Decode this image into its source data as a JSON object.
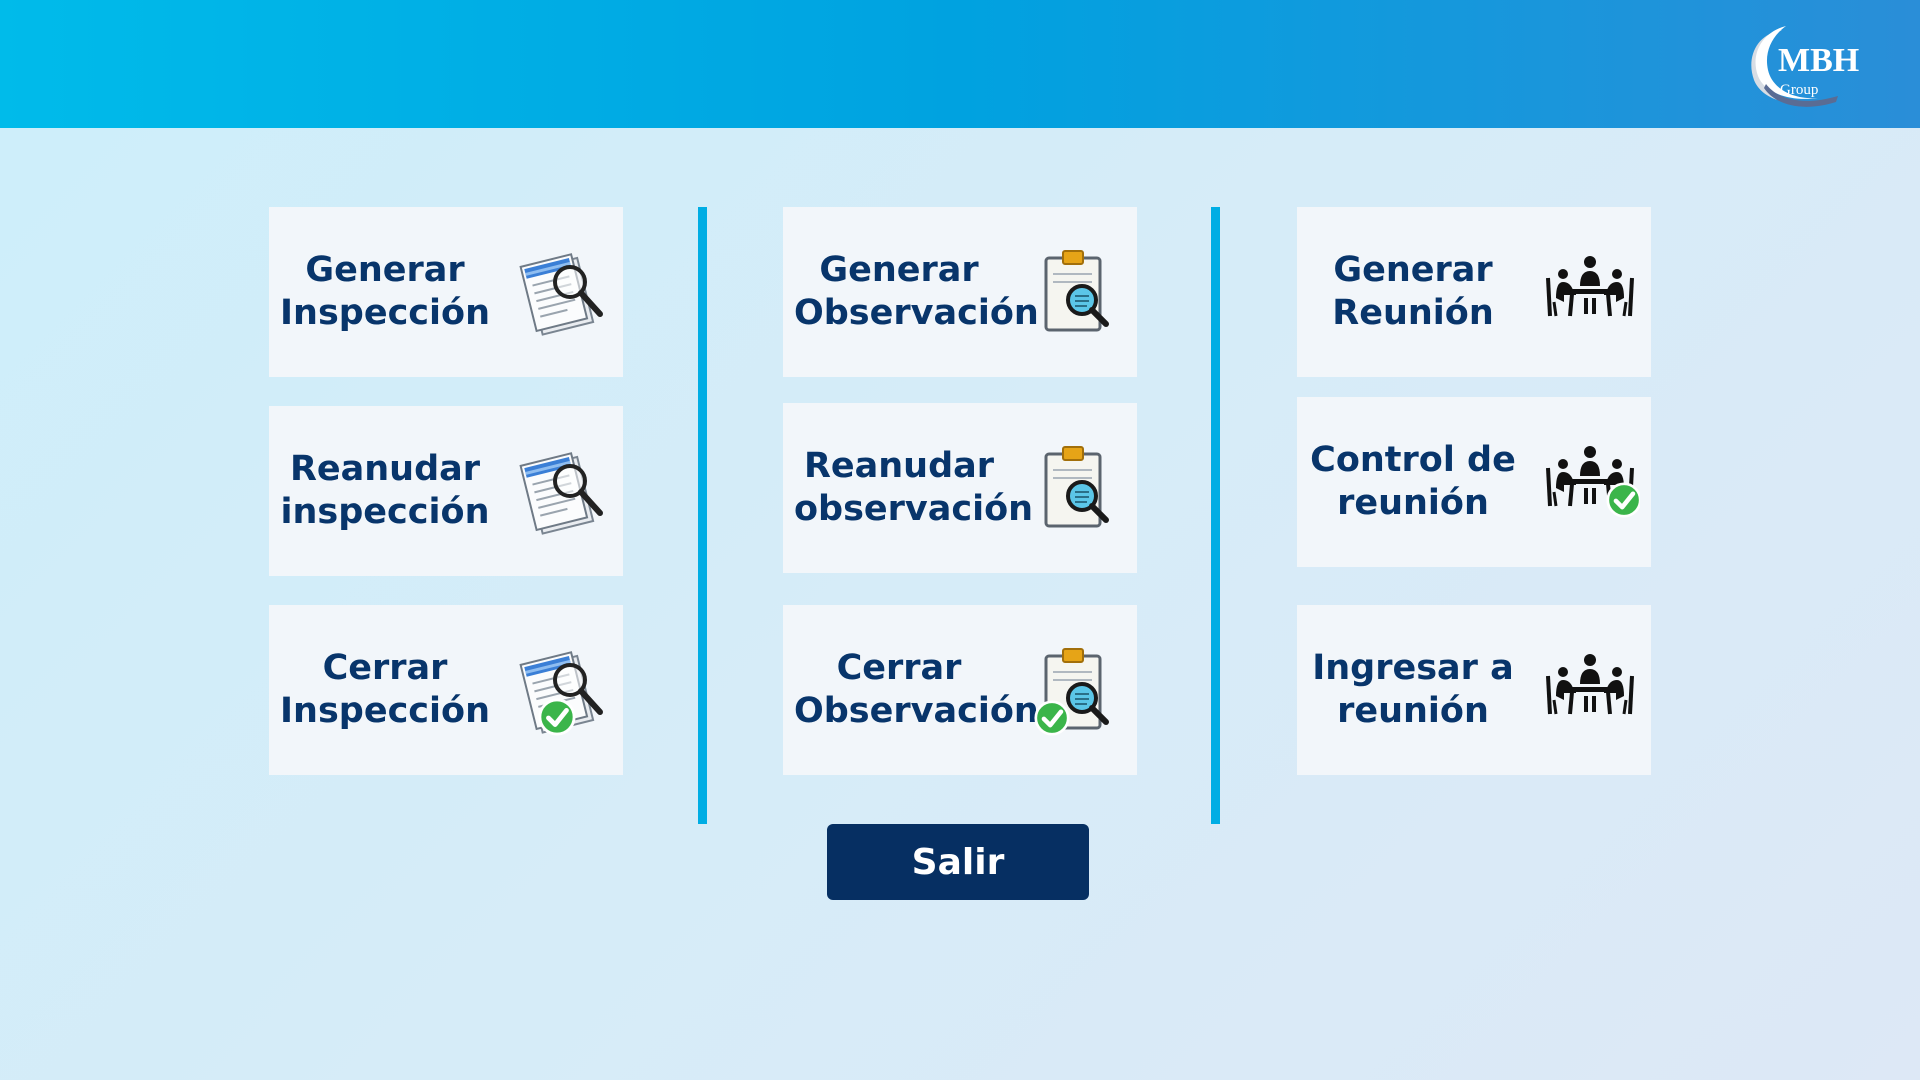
{
  "header": {
    "logo": {
      "name": "MBH",
      "subtitle": "Group"
    }
  },
  "menu": {
    "inspeccion": {
      "generar": {
        "label": "Generar\nInspección",
        "icon": "document-magnifier-icon"
      },
      "reanudar": {
        "label": "Reanudar\ninspección",
        "icon": "document-magnifier-icon"
      },
      "cerrar": {
        "label": "Cerrar\nInspección",
        "icon": "document-magnifier-check-icon"
      }
    },
    "observacion": {
      "generar": {
        "label": "Generar\nObservación",
        "icon": "clipboard-magnifier-icon"
      },
      "reanudar": {
        "label": "Reanudar\nobservación",
        "icon": "clipboard-magnifier-icon"
      },
      "cerrar": {
        "label": "Cerrar\nObservación",
        "icon": "clipboard-magnifier-check-icon"
      }
    },
    "reunion": {
      "generar": {
        "label": "Generar\nReunión",
        "icon": "meeting-icon"
      },
      "control": {
        "label": "Control de\nreunión",
        "icon": "meeting-check-icon"
      },
      "ingresar": {
        "label": "Ingresar a\nreunión",
        "icon": "meeting-icon"
      }
    }
  },
  "footer": {
    "exit_label": "Salir"
  },
  "colors": {
    "header_start": "#00bbea",
    "header_end": "#2a8ed8",
    "tile_bg": "#f2f6fa",
    "tile_text": "#08356b",
    "divider": "#00ade4",
    "exit_bg": "#062f62",
    "check_green": "#3bb54a"
  }
}
